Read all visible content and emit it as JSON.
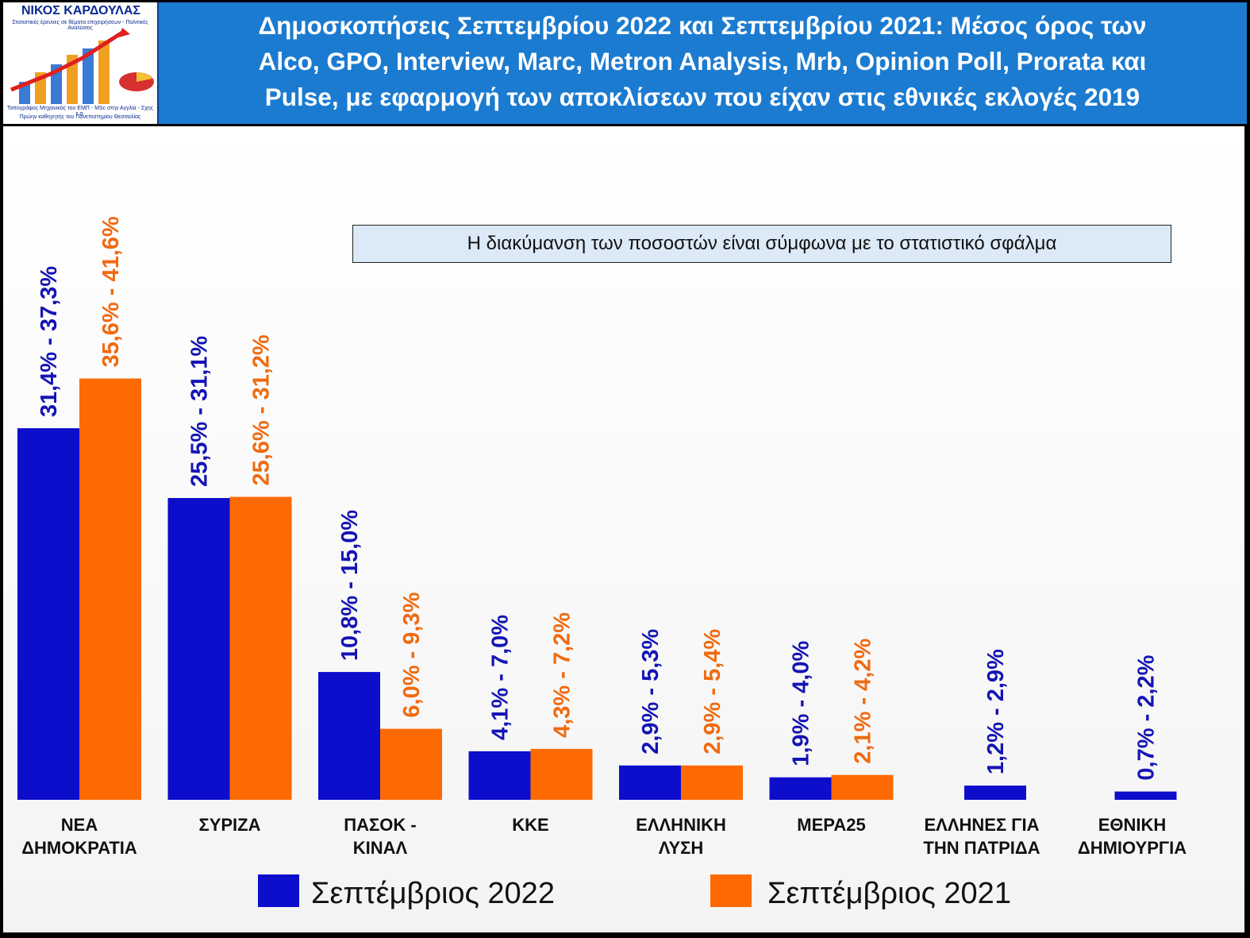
{
  "header": {
    "title_lines": [
      "Δημοσκοπήσεις Σεπτεμβρίου 2022 και Σεπτεμβρίου 2021: Μέσος όρος των",
      "Alco, GPO, Interview, Marc, Metron Analysis, Mrb, Opinion Poll, Prorata και",
      "Pulse, με εφαρμογή των αποκλίσεων που είχαν στις εθνικές εκλογές 2019"
    ],
    "logo_name": "ΝΙΚΟΣ ΚΑΡΔΟΥΛΑΣ",
    "logo_sub1": "Στατιστικές έρευνες σε θέματα επιχειρήσεων - Πολιτικές Αναλύσεις",
    "logo_sub2": "Τοπογράφος Μηχανικός του ΕΜΠ - MSc στην Αγγλία - Σχης ε.α.",
    "logo_sub3": "Πρώην καθηγητής του Πανεπιστημίου Θεσσαλίας"
  },
  "note": "Η διακύμανση των ποσοστών είναι σύμφωνα με το στατιστικό σφάλμα",
  "colors": {
    "series_2022": "#0d0dcc",
    "series_2021": "#fd6a02",
    "label_2022": "#1414b4",
    "label_2021": "#f06a10"
  },
  "chart_data": {
    "type": "bar",
    "title": "Δημοσκοπήσεις Σεπτεμβρίου 2022 και Σεπτεμβρίου 2021",
    "categories": [
      [
        "ΝΕΑ",
        "ΔΗΜΟΚΡΑΤΙΑ"
      ],
      [
        "ΣΥΡΙΖΑ"
      ],
      [
        "ΠΑΣΟΚ -",
        "ΚΙΝΑΛ"
      ],
      [
        "ΚΚΕ"
      ],
      [
        "ΕΛΛΗΝΙΚΗ",
        "ΛΥΣΗ"
      ],
      [
        "ΜΕΡΑ25"
      ],
      [
        "ΕΛΛΗΝΕΣ ΓΙΑ",
        "ΤΗΝ ΠΑΤΡΙΔΑ"
      ],
      [
        "ΕΘΝΙΚΗ",
        "ΔΗΜΙΟΥΡΓΙΑ"
      ]
    ],
    "series": [
      {
        "name": "Σεπτέμβριος 2022",
        "values": [
          31.4,
          25.5,
          10.8,
          4.1,
          2.9,
          1.9,
          1.2,
          0.7
        ],
        "labels": [
          "31,4% - 37,3%",
          "25,5% - 31,1%",
          "10,8% - 15,0%",
          "4,1% - 7,0%",
          "2,9% - 5,3%",
          "1,9% - 4,0%",
          "1,2% - 2,9%",
          "0,7% - 2,2%"
        ]
      },
      {
        "name": "Σεπτέμβριος 2021",
        "values": [
          35.6,
          25.6,
          6.0,
          4.3,
          2.9,
          2.1,
          null,
          null
        ],
        "labels": [
          "35,6% - 41,6%",
          "25,6% - 31,2%",
          "6,0% - 9,3%",
          "4,3% - 7,2%",
          "2,9% - 5,4%",
          "2,1% - 4,2%",
          null,
          null
        ]
      }
    ],
    "ylim": [
      0,
      40
    ],
    "grid": false,
    "legend": "bottom"
  }
}
